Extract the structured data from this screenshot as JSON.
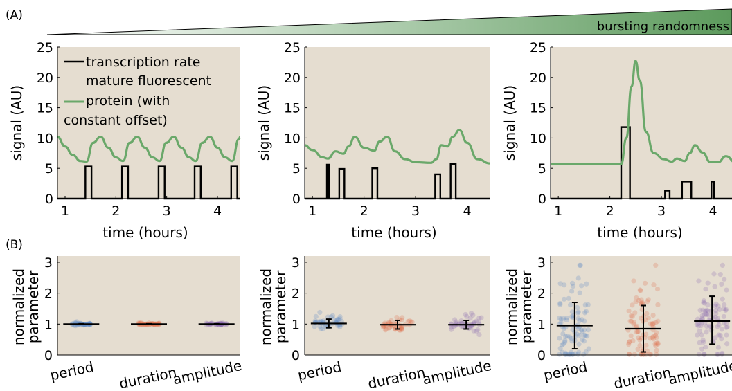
{
  "panel_labels": {
    "a": "(A)",
    "b": "(B)"
  },
  "gradient_label": "bursting randomness",
  "colors": {
    "plot_background": "#e5ddd0",
    "protein_line": "#6aa86a",
    "transcription_line": "#000000",
    "gradient_start": "#ffffff",
    "gradient_end": "#5c9a5c",
    "period": "#5b86c5",
    "duration": "#e0704a",
    "amplitude": "#8a6bb0"
  },
  "legend": {
    "transcription": "transcription rate",
    "protein_lines": [
      "mature fluorescent",
      "protein (with",
      "constant offset)"
    ]
  },
  "chart_data": [
    {
      "type": "line",
      "panel": "A1",
      "xlabel": "time (hours)",
      "ylabel": "signal (AU)",
      "xlim": [
        0.85,
        4.45
      ],
      "ylim": [
        0,
        25
      ],
      "xticks": [
        1,
        2,
        3,
        4
      ],
      "yticks": [
        0,
        5,
        10,
        15,
        20,
        25
      ],
      "series": [
        {
          "name": "transcription rate",
          "kind": "pulses",
          "baseline": 0,
          "pulses": [
            [
              1.4,
              1.52,
              5.3
            ],
            [
              2.12,
              2.24,
              5.3
            ],
            [
              2.84,
              2.96,
              5.3
            ],
            [
              3.55,
              3.67,
              5.3
            ],
            [
              4.27,
              4.39,
              5.3
            ]
          ]
        },
        {
          "name": "mature fluorescent protein (with constant offset)",
          "kind": "line",
          "x": [
            0.85,
            1.0,
            1.15,
            1.3,
            1.42,
            1.55,
            1.7,
            1.85,
            2.0,
            2.14,
            2.27,
            2.42,
            2.57,
            2.72,
            2.86,
            2.99,
            3.14,
            3.29,
            3.44,
            3.57,
            3.7,
            3.85,
            4.0,
            4.15,
            4.29,
            4.42,
            4.45
          ],
          "y": [
            10.2,
            8.6,
            7.2,
            6.2,
            6.1,
            9.2,
            10.2,
            8.4,
            6.8,
            6.2,
            9.2,
            10.2,
            8.4,
            6.8,
            6.2,
            9.2,
            10.2,
            8.4,
            6.8,
            6.2,
            9.2,
            10.2,
            8.4,
            6.8,
            6.2,
            9.8,
            10.2
          ]
        }
      ]
    },
    {
      "type": "line",
      "panel": "A2",
      "xlabel": "time (hours)",
      "ylabel": "signal (AU)",
      "xlim": [
        0.85,
        4.45
      ],
      "ylim": [
        0,
        25
      ],
      "xticks": [
        1,
        2,
        3,
        4
      ],
      "yticks": [
        0,
        5,
        10,
        15,
        20,
        25
      ],
      "series": [
        {
          "name": "transcription rate",
          "kind": "pulses",
          "baseline": 0,
          "pulses": [
            [
              1.28,
              1.32,
              5.6
            ],
            [
              1.52,
              1.62,
              4.9
            ],
            [
              2.16,
              2.26,
              5.0
            ],
            [
              3.38,
              3.48,
              4.0
            ],
            [
              3.68,
              3.78,
              5.7
            ]
          ]
        },
        {
          "name": "mature fluorescent protein (with constant offset)",
          "kind": "line",
          "x": [
            0.85,
            1.0,
            1.2,
            1.3,
            1.45,
            1.6,
            1.7,
            1.82,
            2.0,
            2.2,
            2.3,
            2.45,
            2.6,
            2.8,
            3.0,
            3.3,
            3.4,
            3.5,
            3.62,
            3.72,
            3.85,
            4.0,
            4.2,
            4.45
          ],
          "y": [
            8.8,
            8.0,
            6.8,
            6.6,
            7.8,
            7.4,
            8.6,
            10.2,
            8.4,
            7.9,
            9.4,
            10.2,
            7.8,
            6.5,
            6.0,
            5.9,
            6.5,
            8.8,
            8.6,
            10.2,
            11.3,
            9.2,
            6.5,
            5.8
          ]
        }
      ]
    },
    {
      "type": "line",
      "panel": "A3",
      "xlabel": "time (hours)",
      "ylabel": "signal (AU)",
      "xlim": [
        0.85,
        4.45
      ],
      "ylim": [
        0,
        25
      ],
      "xticks": [
        1,
        2,
        3,
        4
      ],
      "yticks": [
        0,
        5,
        10,
        15,
        20,
        25
      ],
      "series": [
        {
          "name": "transcription rate",
          "kind": "pulses",
          "baseline": 0,
          "pulses": [
            [
              2.22,
              2.39,
              11.8
            ],
            [
              3.07,
              3.16,
              1.3
            ],
            [
              3.4,
              3.58,
              2.8
            ],
            [
              3.97,
              4.02,
              2.8
            ]
          ]
        },
        {
          "name": "mature fluorescent protein (with constant offset)",
          "kind": "line",
          "x": [
            0.85,
            1.5,
            2.22,
            2.32,
            2.42,
            2.5,
            2.58,
            2.7,
            2.85,
            3.05,
            3.2,
            3.3,
            3.45,
            3.55,
            3.65,
            3.8,
            3.95,
            4.1,
            4.25,
            4.45
          ],
          "y": [
            5.7,
            5.7,
            5.7,
            10.0,
            18.5,
            22.7,
            19.5,
            11.0,
            7.5,
            6.5,
            6.1,
            6.6,
            6.2,
            7.5,
            8.8,
            7.6,
            6.0,
            6.0,
            7.0,
            5.9
          ]
        }
      ]
    },
    {
      "type": "scatter",
      "panel": "B1",
      "ylabel": "normalized parameter",
      "ylabel_lines": [
        "normalized",
        "parameter"
      ],
      "ylim": [
        0,
        3.2
      ],
      "yticks": [
        0,
        1,
        2,
        3
      ],
      "categories": [
        "period",
        "duration",
        "amplitude"
      ],
      "series": [
        {
          "name": "period",
          "mean": 1.0,
          "err": [
            0.99,
            1.01
          ],
          "spread": 0.02,
          "n": 40
        },
        {
          "name": "duration",
          "mean": 1.0,
          "err": [
            0.99,
            1.01
          ],
          "spread": 0.02,
          "n": 40
        },
        {
          "name": "amplitude",
          "mean": 1.0,
          "err": [
            0.99,
            1.01
          ],
          "spread": 0.02,
          "n": 40
        }
      ]
    },
    {
      "type": "scatter",
      "panel": "B2",
      "ylabel": "normalized parameter",
      "ylabel_lines": [
        "normalized",
        "parameter"
      ],
      "ylim": [
        0,
        3.2
      ],
      "yticks": [
        0,
        1,
        2,
        3
      ],
      "categories": [
        "period",
        "duration",
        "amplitude"
      ],
      "series": [
        {
          "name": "period",
          "mean": 1.02,
          "err": [
            0.88,
            1.16
          ],
          "spread": 0.12,
          "n": 45
        },
        {
          "name": "duration",
          "mean": 0.98,
          "err": [
            0.84,
            1.12
          ],
          "spread": 0.13,
          "n": 45
        },
        {
          "name": "amplitude",
          "mean": 0.98,
          "err": [
            0.84,
            1.12
          ],
          "spread": 0.13,
          "n": 45
        }
      ]
    },
    {
      "type": "scatter",
      "panel": "B3",
      "ylabel": "normalized parameter",
      "ylabel_lines": [
        "normalized",
        "parameter"
      ],
      "ylim": [
        0,
        3.2
      ],
      "yticks": [
        0,
        1,
        2,
        3
      ],
      "categories": [
        "period",
        "duration",
        "amplitude"
      ],
      "series": [
        {
          "name": "period",
          "mean": 0.95,
          "err": [
            0.2,
            1.7
          ],
          "spread": 0.75,
          "n": 90
        },
        {
          "name": "duration",
          "mean": 0.85,
          "err": [
            0.1,
            1.6
          ],
          "spread": 0.75,
          "n": 90
        },
        {
          "name": "amplitude",
          "mean": 1.1,
          "err": [
            0.35,
            1.9
          ],
          "spread": 0.75,
          "n": 90
        }
      ]
    }
  ]
}
